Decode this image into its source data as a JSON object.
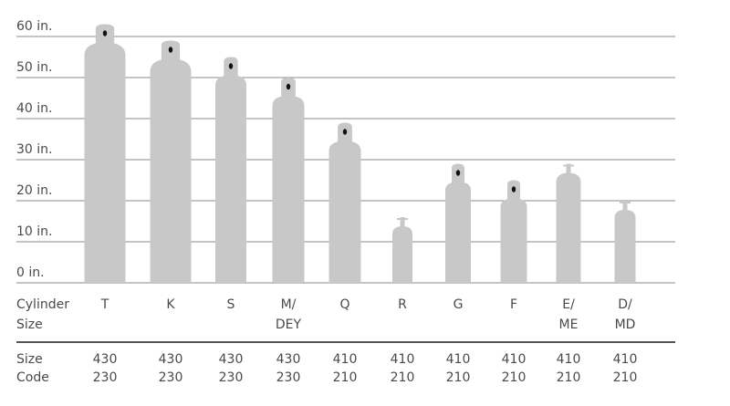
{
  "chart_data": {
    "type": "pictogram-bar",
    "categories": [
      [
        "T"
      ],
      [
        "K"
      ],
      [
        "S"
      ],
      [
        "M/",
        "DEY"
      ],
      [
        "Q"
      ],
      [
        "R"
      ],
      [
        "G"
      ],
      [
        "F"
      ],
      [
        "E/",
        "ME"
      ],
      [
        "D/",
        "MD"
      ]
    ],
    "values": [
      63,
      59,
      55,
      50,
      39,
      16,
      29,
      25,
      29,
      20
    ],
    "color": "#c8c8c8",
    "ylim": [
      0,
      60
    ],
    "yticks": [
      {
        "value": 0,
        "label": "0 in."
      },
      {
        "value": 10,
        "label": "10 in."
      },
      {
        "value": 20,
        "label": "20 in."
      },
      {
        "value": 30,
        "label": "30 in."
      },
      {
        "value": 40,
        "label": "40 in."
      },
      {
        "value": 50,
        "label": "50 in."
      },
      {
        "value": 60,
        "label": "60 in."
      }
    ],
    "grid": true,
    "category_label": [
      "Cylinder",
      "Size"
    ],
    "size_code_label": [
      "Size",
      "Code"
    ],
    "size_codes": [
      [
        430,
        230
      ],
      [
        430,
        230
      ],
      [
        430,
        230
      ],
      [
        430,
        230
      ],
      [
        410,
        210
      ],
      [
        410,
        210
      ],
      [
        410,
        210
      ],
      [
        410,
        210
      ],
      [
        410,
        210
      ],
      [
        410,
        210
      ]
    ]
  }
}
